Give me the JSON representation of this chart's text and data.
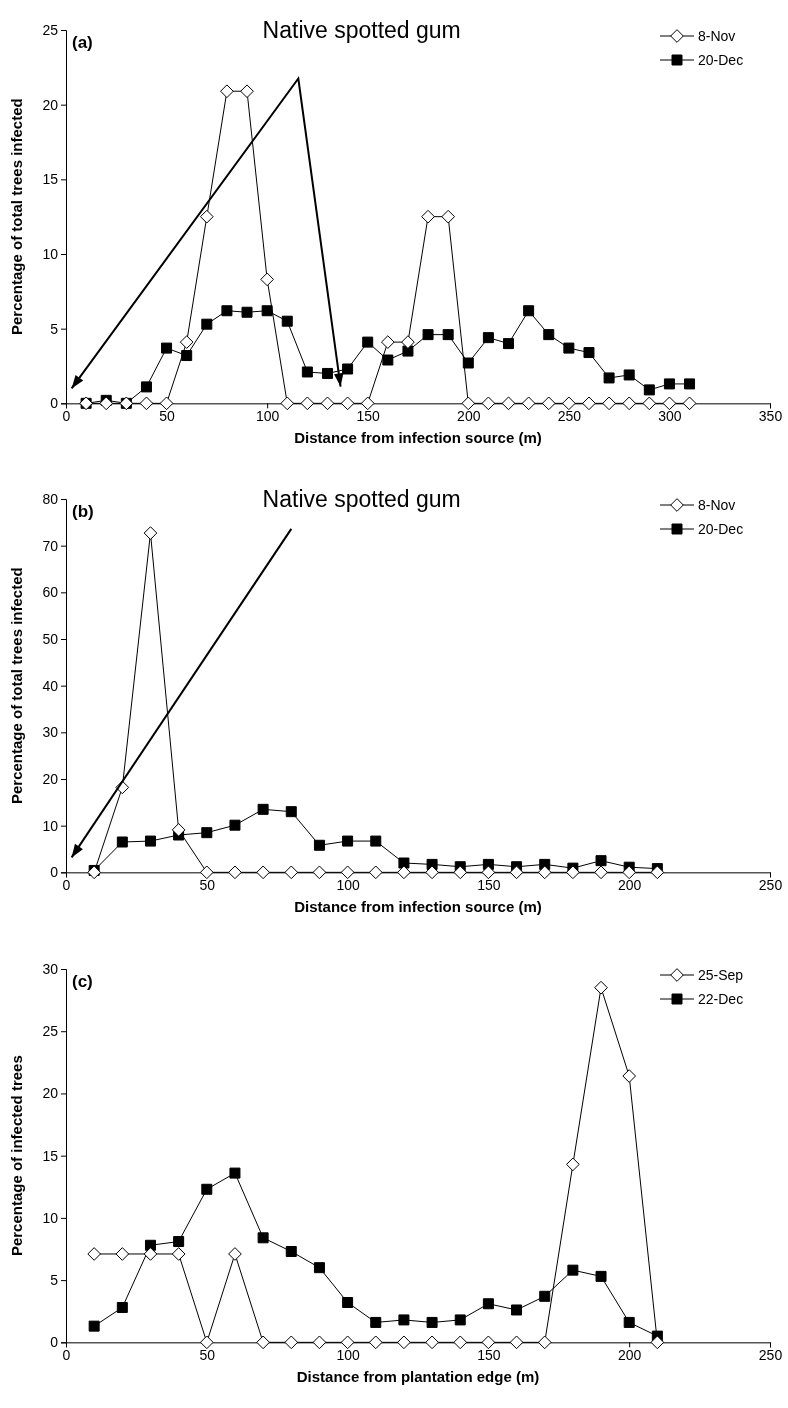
{
  "chart_data": [
    {
      "type": "line",
      "title": "Native spotted gum",
      "annotations": [
        "(a)"
      ],
      "xlabel": "Distance from infection source (m)",
      "ylabel": "Percentage of total trees infected",
      "x": [
        10,
        20,
        30,
        40,
        50,
        60,
        70,
        80,
        90,
        100,
        110,
        120,
        130,
        140,
        150,
        160,
        170,
        180,
        190,
        200,
        210,
        220,
        230,
        240,
        250,
        260,
        270,
        280,
        290,
        300,
        310
      ],
      "xlim": [
        0,
        350
      ],
      "xticks": [
        0,
        50,
        100,
        150,
        200,
        250,
        300,
        350
      ],
      "ylim": [
        0,
        25
      ],
      "yticks": [
        0,
        5,
        10,
        15,
        20,
        25
      ],
      "grid": false,
      "legend": "top right",
      "line_style": "solid",
      "series": [
        {
          "name": "8-Nov",
          "color": "#000000",
          "marker": "diamond",
          "values": [
            0,
            0,
            0,
            0,
            0,
            4.1,
            12.5,
            20.9,
            20.9,
            8.3,
            0,
            0,
            0,
            0,
            0,
            4.1,
            4.1,
            12.5,
            12.5,
            0,
            0,
            0,
            0,
            0,
            0,
            0,
            0,
            0,
            0,
            0,
            0
          ]
        },
        {
          "name": "20-Dec",
          "color": "#000000",
          "marker": "square",
          "values": [
            0,
            0.2,
            0,
            1.1,
            3.7,
            3.2,
            5.3,
            6.2,
            6.1,
            6.2,
            5.5,
            2.1,
            2.0,
            2.3,
            4.1,
            2.9,
            3.5,
            4.6,
            4.6,
            2.7,
            4.4,
            4.0,
            6.2,
            4.6,
            3.7,
            3.4,
            1.7,
            1.9,
            0.9,
            1.3,
            1.3
          ]
        }
      ]
    },
    {
      "type": "line",
      "title": "Native spotted gum",
      "annotations": [
        "(b)"
      ],
      "xlabel": "Distance from infection source (m)",
      "ylabel": "Percentage of total trees infected",
      "x": [
        10,
        20,
        30,
        40,
        50,
        60,
        70,
        80,
        90,
        100,
        110,
        120,
        130,
        140,
        150,
        160,
        170,
        180,
        190,
        200,
        210
      ],
      "xlim": [
        0,
        250
      ],
      "xticks": [
        0,
        50,
        100,
        150,
        200,
        250
      ],
      "ylim": [
        0,
        80
      ],
      "yticks": [
        0,
        10,
        20,
        30,
        40,
        50,
        60,
        70,
        80
      ],
      "grid": false,
      "legend": "top right",
      "line_style": "solid",
      "series": [
        {
          "name": "8-Nov",
          "color": "#000000",
          "marker": "diamond",
          "values": [
            0,
            18.2,
            72.7,
            9.1,
            0,
            0,
            0,
            0,
            0,
            0,
            0,
            0,
            0,
            0,
            0,
            0,
            0,
            0,
            0,
            0,
            0
          ]
        },
        {
          "name": "20-Dec",
          "color": "#000000",
          "marker": "square",
          "values": [
            0.4,
            6.5,
            6.7,
            8,
            8.5,
            10.1,
            13.5,
            13,
            5.8,
            6.7,
            6.7,
            2,
            1.7,
            1.2,
            1.7,
            1.2,
            1.7,
            0.9,
            2.5,
            1.1,
            0.8
          ]
        }
      ]
    },
    {
      "type": "line",
      "annotations": [
        "(c)"
      ],
      "xlabel": "Distance from plantation edge (m)",
      "ylabel": "Percentage of infected trees",
      "x": [
        10,
        20,
        30,
        40,
        50,
        60,
        70,
        80,
        90,
        100,
        110,
        120,
        130,
        140,
        150,
        160,
        170,
        180,
        190,
        200,
        210
      ],
      "xlim": [
        0,
        250
      ],
      "xticks": [
        0,
        50,
        100,
        150,
        200,
        250
      ],
      "ylim": [
        0,
        30
      ],
      "yticks": [
        0,
        5,
        10,
        15,
        20,
        25,
        30
      ],
      "grid": false,
      "legend": "top right",
      "line_style": "solid",
      "series": [
        {
          "name": "25-Sep",
          "color": "#000000",
          "marker": "diamond",
          "values": [
            7.1,
            7.1,
            7.1,
            7.1,
            0,
            7.1,
            0,
            0,
            0,
            0,
            0,
            0,
            0,
            0,
            0,
            0,
            0,
            14.3,
            28.5,
            21.4,
            0
          ]
        },
        {
          "name": "22-Dec",
          "color": "#000000",
          "marker": "square",
          "values": [
            1.3,
            2.8,
            7.8,
            8.1,
            12.3,
            13.6,
            8.4,
            7.3,
            6.0,
            3.2,
            1.6,
            1.8,
            1.6,
            1.8,
            3.1,
            2.6,
            3.7,
            5.8,
            5.3,
            1.6,
            0.5
          ]
        }
      ]
    }
  ]
}
